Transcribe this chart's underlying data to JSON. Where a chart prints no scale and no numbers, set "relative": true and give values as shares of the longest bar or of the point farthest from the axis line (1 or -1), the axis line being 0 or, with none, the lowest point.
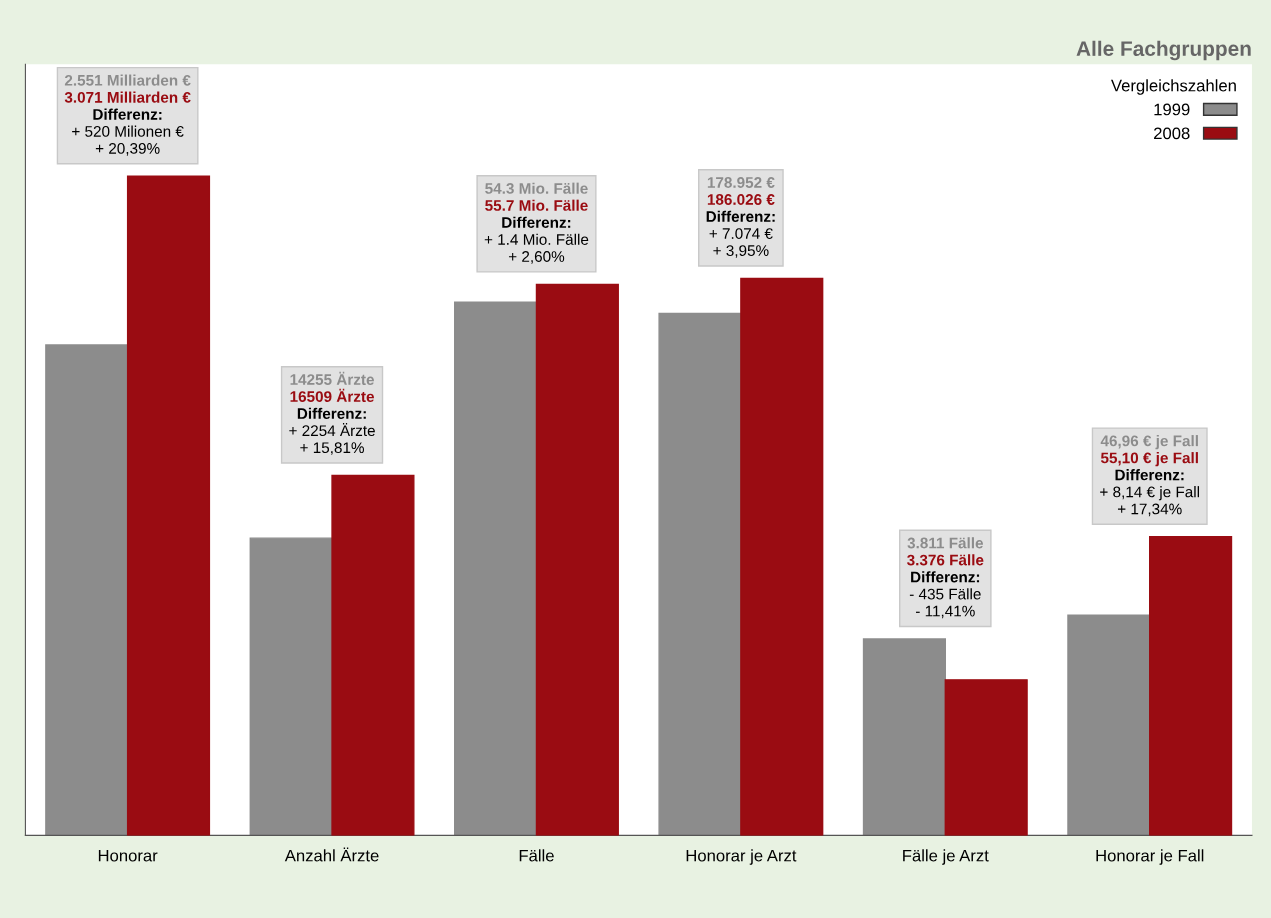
{
  "chart_data": {
    "type": "bar",
    "title": "Alle Fachgruppen",
    "legend_title": "Vergleichszahlen",
    "legend": "top right",
    "relative": true,
    "categories": [
      "Honorar",
      "Anzahl Ärzte",
      "Fälle",
      "Honorar je Arzt",
      "Fälle je Arzt",
      "Honorar je Fall"
    ],
    "series": [
      {
        "name": "1999",
        "color": "#8c8c8c",
        "values": [
          0.744,
          0.451,
          0.809,
          0.792,
          0.298,
          0.334
        ]
      },
      {
        "name": "2008",
        "color": "#9a0c12",
        "values": [
          1,
          0.546,
          0.836,
          0.845,
          0.236,
          0.453
        ]
      }
    ],
    "annotations": [
      "2.551 Milliarden €\n3.071 Milliarden €\nDifferenz:\n+ 520 Milionen €\n+ 20,39%",
      "14255 Ärzte\n16509 Ärzte\nDifferenz:\n+ 2254 Ärzte\n+ 15,81%",
      "54.3 Mio. Fälle\n55.7 Mio. Fälle\nDifferenz:\n+ 1.4 Mio. Fälle\n+ 2,60%",
      "178.952 €\n186.026 €\nDifferenz:\n+ 7.074 €\n+ 3,95%",
      "3.811 Fälle\n3.376 Fälle\nDifferenz:\n- 435 Fälle\n- 11,41%",
      "46,96 € je Fall\n55,10 € je Fall\nDifferenz:\n+ 8,14 € je Fall\n+ 17,34%"
    ]
  }
}
